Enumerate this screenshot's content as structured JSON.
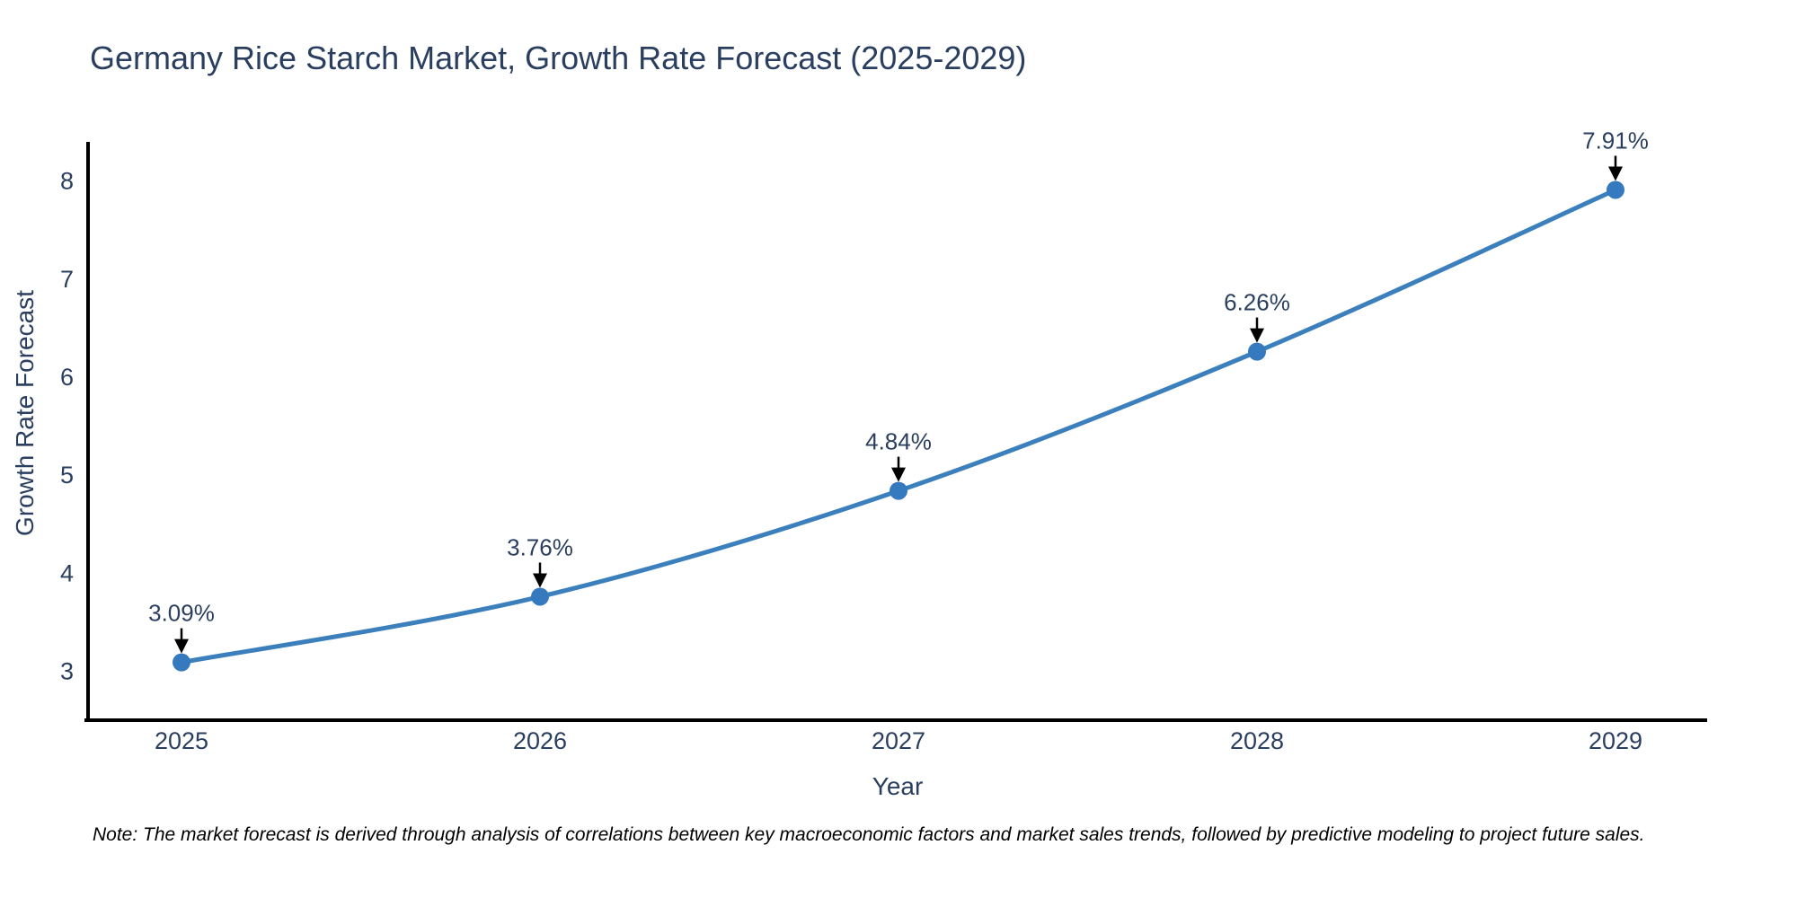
{
  "page": {
    "title": "Germany Rice Starch Market, Growth Rate Forecast (2025-2029)",
    "note": "Note: The market forecast is derived through analysis of correlations between key macroeconomic factors and market sales trends, followed by predictive modeling to project future sales."
  },
  "chart_data": {
    "type": "line",
    "title": "Germany Rice Starch Market, Growth Rate Forecast (2025-2029)",
    "xlabel": "Year",
    "ylabel": "Growth Rate Forecast",
    "categories": [
      "2025",
      "2026",
      "2027",
      "2028",
      "2029"
    ],
    "values": [
      3.09,
      3.76,
      4.84,
      6.26,
      7.91
    ],
    "point_labels": [
      "3.09%",
      "3.76%",
      "4.84%",
      "6.26%",
      "7.91%"
    ],
    "yticks": [
      3,
      4,
      5,
      6,
      7,
      8
    ],
    "ylim": [
      2.5,
      8.4
    ],
    "grid": false,
    "legend": "none",
    "line_shape": "spline",
    "marker": "circle",
    "annotation_style": "arrow-down-to-point",
    "colors": {
      "line": "#3b80bd",
      "marker": "#3579be",
      "axis": "#000000",
      "tick_text": "#2a3f5f",
      "annotation_text": "#2a3f5f",
      "arrow": "#000000",
      "title_text": "#2a3f5f",
      "note_text": "#000000",
      "background": "#ffffff"
    }
  }
}
